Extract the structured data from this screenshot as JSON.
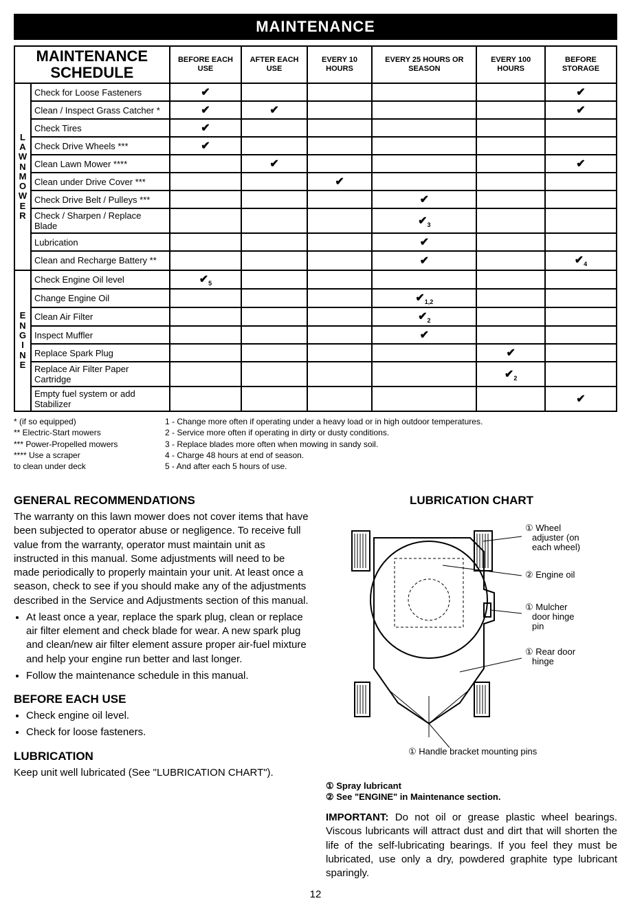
{
  "header": "MAINTENANCE",
  "table_title_line1": "MAINTENANCE",
  "table_title_line2": "SCHEDULE",
  "columns": [
    "BEFORE EACH USE",
    "AFTER EACH USE",
    "EVERY 10 HOURS",
    "EVERY 25 HOURS OR SEASON",
    "EVERY 100 HOURS",
    "BEFORE STORAGE"
  ],
  "groups": [
    {
      "label": "LAWN MOWER",
      "tasks": [
        {
          "name": "Check for Loose Fasteners",
          "checks": [
            "✔",
            "",
            "",
            "",
            "",
            "✔"
          ]
        },
        {
          "name": "Clean / Inspect Grass Catcher *",
          "checks": [
            "✔",
            "✔",
            "",
            "",
            "",
            "✔"
          ]
        },
        {
          "name": "Check Tires",
          "checks": [
            "✔",
            "",
            "",
            "",
            "",
            ""
          ]
        },
        {
          "name": "Check Drive Wheels ***",
          "checks": [
            "✔",
            "",
            "",
            "",
            "",
            ""
          ]
        },
        {
          "name": "Clean Lawn Mower ****",
          "checks": [
            "",
            "✔",
            "",
            "",
            "",
            "✔"
          ]
        },
        {
          "name": "Clean under Drive Cover ***",
          "checks": [
            "",
            "",
            "✔",
            "",
            "",
            ""
          ]
        },
        {
          "name": "Check Drive Belt / Pulleys ***",
          "checks": [
            "",
            "",
            "",
            "✔",
            "",
            ""
          ]
        },
        {
          "name": "Check / Sharpen / Replace Blade",
          "checks": [
            "",
            "",
            "",
            "✔3",
            "",
            ""
          ]
        },
        {
          "name": "Lubrication",
          "checks": [
            "",
            "",
            "",
            "✔",
            "",
            ""
          ]
        },
        {
          "name": "Clean and Recharge Battery **",
          "checks": [
            "",
            "",
            "",
            "✔",
            "",
            "✔4"
          ]
        }
      ]
    },
    {
      "label": "ENGINE",
      "tasks": [
        {
          "name": "Check Engine Oil level",
          "checks": [
            "✔5",
            "",
            "",
            "",
            "",
            ""
          ]
        },
        {
          "name": "Change Engine Oil",
          "checks": [
            "",
            "",
            "",
            "✔1,2",
            "",
            ""
          ]
        },
        {
          "name": "Clean Air Filter",
          "checks": [
            "",
            "",
            "",
            "✔2",
            "",
            ""
          ]
        },
        {
          "name": "Inspect Muffler",
          "checks": [
            "",
            "",
            "",
            "✔",
            "",
            ""
          ]
        },
        {
          "name": "Replace Spark Plug",
          "checks": [
            "",
            "",
            "",
            "",
            "✔",
            ""
          ]
        },
        {
          "name": "Replace Air Filter Paper Cartridge",
          "checks": [
            "",
            "",
            "",
            "",
            "✔2",
            ""
          ]
        },
        {
          "name": "Empty fuel system or add Stabilizer",
          "checks": [
            "",
            "",
            "",
            "",
            "",
            "✔"
          ]
        }
      ]
    }
  ],
  "footnotes_left": [
    "* (if so equipped)",
    "** Electric-Start mowers",
    "*** Power-Propelled mowers",
    "**** Use a scraper",
    "       to clean under deck"
  ],
  "footnotes_right": [
    "1 - Change more often if operating under a heavy load or in high outdoor temperatures.",
    "2 - Service more often if operating in dirty or dusty conditions.",
    "3 - Replace blades more often when mowing in sandy soil.",
    "4 - Charge 48 hours at end of season.",
    "5 - And after each 5 hours of use."
  ],
  "general_title": "GENERAL RECOMMENDATIONS",
  "general_body": "The warranty on this lawn mower does not cover items that have been subjected to operator abuse or negligence.  To receive full value from the warranty, operator must maintain unit as instructed in this manual. Some adjustments will need to be made periodically to properly maintain your unit. At least once a season, check to see if you should make any of the adjustments described in the Service and Adjustments section of this manual.",
  "general_bullets": [
    "At least once a year, replace the spark plug, clean or replace air filter element and check blade for wear.  A new spark plug and clean/new air filter element assure proper air-fuel mixture and help your engine run better and last longer.",
    "Follow the maintenance schedule in this manual."
  ],
  "before_title": "BEFORE EACH USE",
  "before_bullets": [
    "Check engine oil level.",
    "Check for loose fasteners."
  ],
  "lubrication_title": "LUBRICATION",
  "lubrication_body": "Keep unit well lubricated (See \"LUBRICATION CHART\").",
  "chart_title": "LUBRICATION CHART",
  "chart_labels": {
    "wheel_adj": "① Wheel adjuster (on each wheel)",
    "engine_oil": "② Engine oil",
    "mulcher": "① Mulcher door hinge pin",
    "rear_door": "① Rear door hinge",
    "handle": "① Handle bracket mounting pins"
  },
  "lube_legend_1": "① Spray lubricant",
  "lube_legend_2": "② See \"ENGINE\" in Maintenance section.",
  "important_label": "IMPORTANT:",
  "important_body": "  Do not oil or grease plastic wheel bearings.  Viscous lubricants will attract dust and dirt that will shorten the life of the self-lubricating bearings.  If you feel they must be lubricated, use only a dry, powdered graphite type lubricant sparingly.",
  "page_number": "12"
}
